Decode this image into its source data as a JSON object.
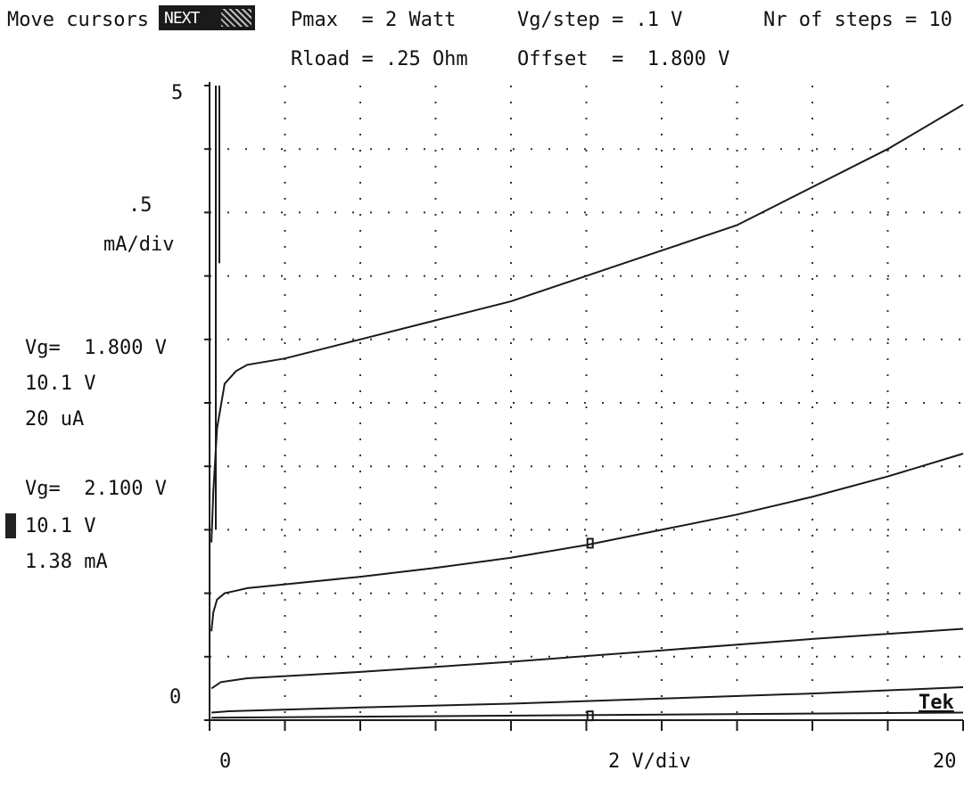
{
  "header": {
    "mode_label": "Move cursors",
    "mode_button_label": "NEXT",
    "pmax": "Pmax  = 2 Watt",
    "rload": "Rload = .25 Ohm",
    "vg_step": "Vg/step = .1 V",
    "offset": "Offset  =  1.800 V",
    "steps": "Nr of steps = 10"
  },
  "cursor1": {
    "vg": "Vg=  1.800 V",
    "v": "10.1 V",
    "i": "20 uA"
  },
  "cursor2": {
    "vg": "Vg=  2.100 V",
    "v": "10.1 V",
    "i": "1.38 mA"
  },
  "y_scale": {
    "top": "5",
    "per_div_value": ".5",
    "per_div_unit": "mA/div",
    "bottom": "0"
  },
  "x_scale": {
    "left": "0",
    "per_div": "2 V/div",
    "right": "20"
  },
  "brand": "Tek",
  "colors": {
    "trace": "#1a1a1a",
    "grid": "#333333",
    "background": "#ffffff"
  },
  "chart_data": {
    "type": "line",
    "xlabel": "2 V/div",
    "ylabel": "mA/div",
    "xlim": [
      0,
      20
    ],
    "ylim": [
      0,
      5
    ],
    "grid": true,
    "series": [
      {
        "x": [
          0.05,
          0.1,
          0.2,
          0.4,
          0.7,
          1.0,
          2,
          4,
          6,
          8,
          10,
          12,
          14,
          16,
          18,
          20
        ],
        "y": [
          1.4,
          1.8,
          2.3,
          2.65,
          2.75,
          2.8,
          2.85,
          3.0,
          3.15,
          3.3,
          3.5,
          3.7,
          3.9,
          4.2,
          4.5,
          4.85
        ]
      },
      {
        "x": [
          0.05,
          0.1,
          0.2,
          0.4,
          0.7,
          1.0,
          2,
          4,
          6,
          8,
          10,
          12,
          14,
          16,
          18,
          20
        ],
        "y": [
          0.7,
          0.85,
          0.95,
          1.0,
          1.02,
          1.04,
          1.07,
          1.13,
          1.2,
          1.28,
          1.38,
          1.5,
          1.62,
          1.76,
          1.92,
          2.1
        ]
      },
      {
        "x": [
          0.05,
          0.3,
          1.0,
          4,
          8,
          12,
          16,
          20
        ],
        "y": [
          0.25,
          0.3,
          0.33,
          0.38,
          0.46,
          0.55,
          0.64,
          0.72
        ]
      },
      {
        "x": [
          0.05,
          0.5,
          4,
          8,
          12,
          16,
          20
        ],
        "y": [
          0.06,
          0.07,
          0.1,
          0.13,
          0.17,
          0.21,
          0.26
        ]
      },
      {
        "x": [
          0.05,
          20
        ],
        "y": [
          0.02,
          0.06
        ]
      }
    ],
    "cursors": [
      {
        "x": 10.1,
        "y": 1.38
      },
      {
        "x": 10.1,
        "y": 0.02
      }
    ]
  }
}
